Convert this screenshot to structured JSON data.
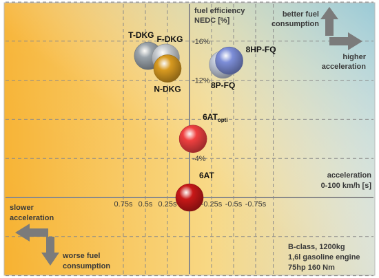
{
  "chart_data": {
    "type": "scatter",
    "x_axis": {
      "title_lines": [
        "acceleration",
        "0-100 km/h [s]"
      ],
      "range": [
        0.95,
        -0.95
      ],
      "tick_values": [
        0.75,
        0.5,
        0.25,
        -0.25,
        -0.5,
        -0.75
      ],
      "tick_labels": [
        "0.75s",
        "0.5s",
        "0.25s",
        "-0.25s",
        "-0.5s",
        "-0.75s"
      ]
    },
    "y_axis": {
      "title_lines": [
        "fuel efficiency",
        "NEDC [%]"
      ],
      "range": [
        -10.5,
        20
      ],
      "tick_values": [
        16,
        12,
        4
      ],
      "tick_labels": [
        "-16%",
        "-12%",
        "-4%"
      ]
    },
    "grid": true,
    "points": [
      {
        "name": "T-DKG",
        "x": 0.47,
        "y": 14.5,
        "color": "#9aa3aa",
        "label_pos": "above-left"
      },
      {
        "name": "F-DKG",
        "x": 0.27,
        "y": 14.3,
        "color": "#c4c8cc",
        "label_pos": "above"
      },
      {
        "name": "N-DKG",
        "x": 0.25,
        "y": 13.2,
        "color": "#d89a20",
        "label_pos": "below"
      },
      {
        "name": "8P-FQ",
        "x": -0.38,
        "y": 13.6,
        "color": "#c0c8d8",
        "label_pos": "below"
      },
      {
        "name": "8HP-FQ",
        "x": -0.45,
        "y": 14.0,
        "color": "#7d8ed8",
        "label_pos": "right"
      },
      {
        "name": "6AT",
        "name_sub": "opti",
        "x": -0.04,
        "y": 6.0,
        "color": "#f04040",
        "label_pos": "above-right"
      },
      {
        "name": "6AT",
        "x": 0.0,
        "y": 0.0,
        "color": "#c81818",
        "label_pos": "above-right"
      }
    ],
    "annotations": {
      "better_fuel": [
        "better fuel",
        "consumption"
      ],
      "higher_accel": [
        "higher",
        "acceleration"
      ],
      "slower_accel": [
        "slower",
        "acceleration"
      ],
      "worse_fuel": [
        "worse fuel",
        "consumption"
      ],
      "vehicle_info": [
        "B-class, 1200kg",
        "1,6l gasoline engine",
        "75hp 160 Nm"
      ]
    }
  },
  "colors": {
    "gradient_top_left": "#b9c0b0",
    "gradient_top_right": "#a6ccd6",
    "gradient_bottom_left": "#f8b030",
    "gradient_bottom_right": "#fdeab0",
    "grid": "#8a8a8a",
    "axis": "#8a8a8a",
    "arrow": "#7b7b7b"
  }
}
